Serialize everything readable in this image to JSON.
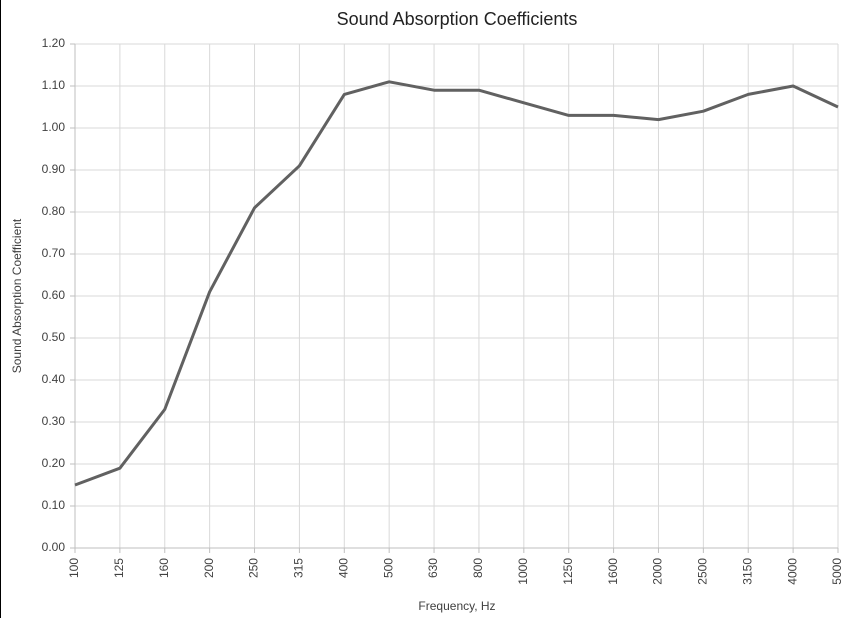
{
  "chart_data": {
    "type": "line",
    "title": "Sound Absorption Coefficients",
    "x_label": "Frequency, Hz",
    "y_label": "Sound Absorption Coefficient",
    "categories": [
      "100",
      "125",
      "160",
      "200",
      "250",
      "315",
      "400",
      "500",
      "630",
      "800",
      "1000",
      "1250",
      "1600",
      "2000",
      "2500",
      "3150",
      "4000",
      "5000"
    ],
    "series": [
      {
        "name": "Sound Absorption Coefficient",
        "color": "#616161",
        "values": [
          0.15,
          0.19,
          0.33,
          0.61,
          0.81,
          0.91,
          1.08,
          1.11,
          1.09,
          1.09,
          1.06,
          1.03,
          1.03,
          1.02,
          1.04,
          1.08,
          1.1,
          1.05
        ]
      }
    ],
    "ylim": [
      0,
      1.2
    ],
    "yticks": [
      {
        "value": 0,
        "label": "0.00"
      },
      {
        "value": 0.1,
        "label": "0.10"
      },
      {
        "value": 0.2,
        "label": "0.20"
      },
      {
        "value": 0.3,
        "label": "0.30"
      },
      {
        "value": 0.4,
        "label": "0.40"
      },
      {
        "value": 0.5,
        "label": "0.50"
      },
      {
        "value": 0.6,
        "label": "0.60"
      },
      {
        "value": 0.7,
        "label": "0.70"
      },
      {
        "value": 0.8,
        "label": "0.80"
      },
      {
        "value": 0.9,
        "label": "0.90"
      },
      {
        "value": 1,
        "label": "1.00"
      },
      {
        "value": 1.1,
        "label": "1.10"
      },
      {
        "value": 1.2,
        "label": "1.20"
      }
    ],
    "grid": true
  }
}
